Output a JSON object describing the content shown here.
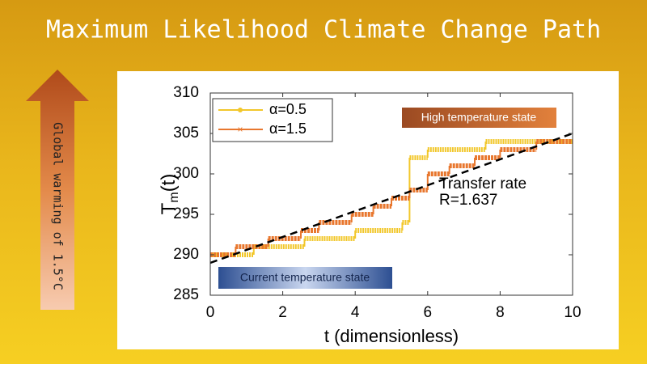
{
  "slide_title": "Maximum Likelihood Climate Change Path",
  "arrow_label": "Global warming of 1.5°C",
  "chart_data": {
    "type": "step",
    "ylabel": [
      "T",
      "m",
      "(t)"
    ],
    "xlabel": "t  (dimensionless)",
    "xlim": [
      0,
      10
    ],
    "xticks": [
      0,
      2,
      4,
      6,
      8,
      10
    ],
    "ylim": [
      285,
      310
    ],
    "yticks": [
      285,
      290,
      295,
      300,
      305,
      310
    ],
    "series": [
      {
        "name": "α=0.5",
        "color": "#f2c72b",
        "x": [
          0,
          1.2,
          2.6,
          4.0,
          5.3,
          5.5,
          6.0,
          7.6
        ],
        "values": [
          290,
          291,
          292,
          293,
          294,
          302,
          303,
          304
        ]
      },
      {
        "name": "α=1.5",
        "color": "#e8772e",
        "x": [
          0,
          0.7,
          1.6,
          2.5,
          3.0,
          3.9,
          4.5,
          5.0,
          5.5,
          6.0,
          6.6,
          7.3,
          8.0,
          9.0
        ],
        "values": [
          290,
          291,
          292,
          293,
          294,
          295,
          296,
          297,
          298,
          300,
          301,
          302,
          303,
          304
        ]
      }
    ],
    "fit_line": {
      "x": [
        0,
        10
      ],
      "values": [
        289,
        305
      ],
      "color": "#000000"
    },
    "annotations": {
      "transfer": "Transfer rate",
      "rate": "R=1.637",
      "high": "High temperature state",
      "current": "Current temperature state"
    }
  }
}
